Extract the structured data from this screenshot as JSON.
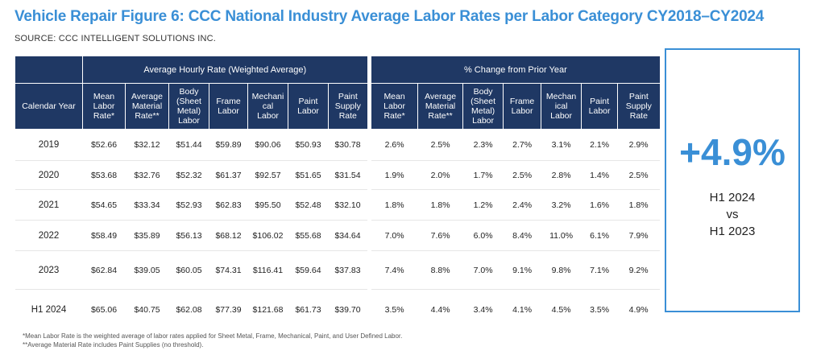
{
  "title": "Vehicle Repair Figure 6: CCC National Industry Average Labor Rates per Labor Category CY2018–CY2024",
  "source": "SOURCE: CCC INTELLIGENT SOLUTIONS INC.",
  "colors": {
    "header_bg": "#1f3864",
    "accent": "#3a8fd6"
  },
  "table": {
    "group_left": "Average Hourly Rate (Weighted Average)",
    "group_right": "% Change from Prior Year",
    "year_header": "Calendar Year",
    "columns": [
      [
        "Mean",
        "Labor",
        "Rate*"
      ],
      [
        "Average",
        "Material",
        "Rate**"
      ],
      [
        "Body",
        "(Sheet",
        "Metal)",
        "Labor"
      ],
      [
        "Frame",
        "Labor"
      ],
      [
        "Mechani",
        "cal",
        "Labor"
      ],
      [
        "Paint",
        "Labor"
      ],
      [
        "Paint",
        "Supply",
        "Rate"
      ]
    ],
    "columns_pct": [
      [
        "Mean",
        "Labor",
        "Rate*"
      ],
      [
        "Average",
        "Material",
        "Rate**"
      ],
      [
        "Body",
        "(Sheet",
        "Metal)",
        "Labor"
      ],
      [
        "Frame",
        "Labor"
      ],
      [
        "Mechan",
        "ical",
        "Labor"
      ],
      [
        "Paint",
        "Labor"
      ],
      [
        "Paint",
        "Supply",
        "Rate"
      ]
    ]
  },
  "chart_data": {
    "type": "table",
    "rows": [
      {
        "year": "2019",
        "rates": [
          "$52.66",
          "$32.12",
          "$51.44",
          "$59.89",
          "$90.06",
          "$50.93",
          "$30.78"
        ],
        "pct": [
          "2.6%",
          "2.5%",
          "2.3%",
          "2.7%",
          "3.1%",
          "2.1%",
          "2.9%"
        ]
      },
      {
        "year": "2020",
        "rates": [
          "$53.68",
          "$32.76",
          "$52.32",
          "$61.37",
          "$92.57",
          "$51.65",
          "$31.54"
        ],
        "pct": [
          "1.9%",
          "2.0%",
          "1.7%",
          "2.5%",
          "2.8%",
          "1.4%",
          "2.5%"
        ]
      },
      {
        "year": "2021",
        "rates": [
          "$54.65",
          "$33.34",
          "$52.93",
          "$62.83",
          "$95.50",
          "$52.48",
          "$32.10"
        ],
        "pct": [
          "1.8%",
          "1.8%",
          "1.2%",
          "2.4%",
          "3.2%",
          "1.6%",
          "1.8%"
        ]
      },
      {
        "year": "2022",
        "rates": [
          "$58.49",
          "$35.89",
          "$56.13",
          "$68.12",
          "$106.02",
          "$55.68",
          "$34.64"
        ],
        "pct": [
          "7.0%",
          "7.6%",
          "6.0%",
          "8.4%",
          "11.0%",
          "6.1%",
          "7.9%"
        ]
      },
      {
        "year": "2023",
        "rates": [
          "$62.84",
          "$39.05",
          "$60.05",
          "$74.31",
          "$116.41",
          "$59.64",
          "$37.83"
        ],
        "pct": [
          "7.4%",
          "8.8%",
          "7.0%",
          "9.1%",
          "9.8%",
          "7.1%",
          "9.2%"
        ]
      },
      {
        "year": "H1 2024",
        "rates": [
          "$65.06",
          "$40.75",
          "$62.08",
          "$77.39",
          "$121.68",
          "$61.73",
          "$39.70"
        ],
        "pct": [
          "3.5%",
          "4.4%",
          "3.4%",
          "4.1%",
          "4.5%",
          "3.5%",
          "4.9%"
        ]
      }
    ]
  },
  "callout": {
    "value": "+4.9%",
    "line1": "H1 2024",
    "line2": "vs",
    "line3": "H1 2023"
  },
  "footnotes": [
    "*Mean Labor Rate is the weighted average of labor rates applied for Sheet Metal, Frame, Mechanical, Paint, and User Defined Labor.",
    "**Average Material Rate includes Paint Supplies (no threshold)."
  ]
}
